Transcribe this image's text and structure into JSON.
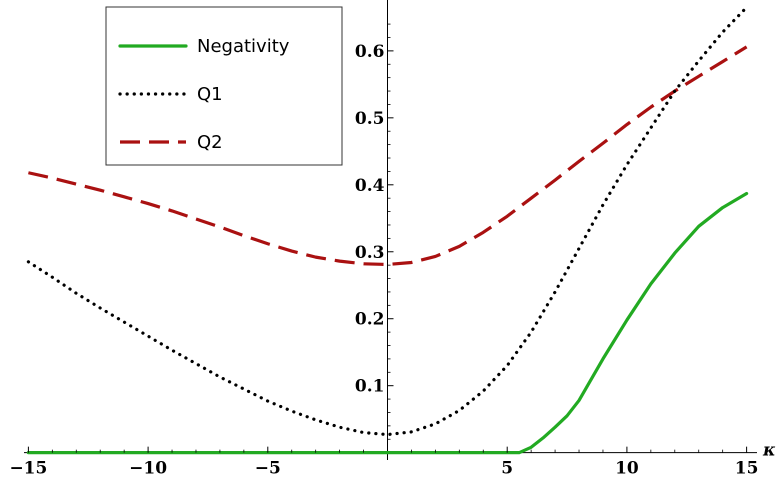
{
  "chart_data": {
    "type": "line",
    "xlabel": "κ",
    "ylabel": "",
    "xlim": [
      -15.1,
      15.1
    ],
    "ylim": [
      -0.005,
      0.67
    ],
    "x_ticks": [
      -15,
      -10,
      -5,
      5,
      10,
      15
    ],
    "y_ticks": [
      0.1,
      0.2,
      0.3,
      0.4,
      0.5,
      0.6
    ],
    "x_tick_labels": [
      "−15",
      "−10",
      "−5",
      "5",
      "10",
      "15"
    ],
    "y_tick_labels": [
      "0.1",
      "0.2",
      "0.3",
      "0.4",
      "0.5",
      "0.6"
    ],
    "grid": false,
    "legend_position": "top-left",
    "series": [
      {
        "name": "Negativity",
        "color": "#22aa22",
        "style": "solid",
        "x": [
          -15,
          -10,
          -5,
          0,
          5,
          5.5,
          6,
          6.5,
          7,
          7.5,
          8,
          9,
          10,
          11,
          12,
          13,
          14,
          15
        ],
        "y": [
          0,
          0,
          0,
          0,
          0,
          0,
          0.008,
          0.022,
          0.038,
          0.055,
          0.078,
          0.14,
          0.198,
          0.252,
          0.298,
          0.338,
          0.366,
          0.387
        ]
      },
      {
        "name": "Q1",
        "color": "#000000",
        "style": "dotted",
        "x": [
          -15,
          -14,
          -13,
          -12,
          -11,
          -10,
          -9,
          -8,
          -7,
          -6,
          -5,
          -4,
          -3,
          -2,
          -1,
          0,
          1,
          2,
          3,
          4,
          5,
          6,
          7,
          8,
          9,
          10,
          11,
          12,
          13,
          14,
          15
        ],
        "y": [
          0.285,
          0.262,
          0.238,
          0.216,
          0.195,
          0.174,
          0.153,
          0.133,
          0.113,
          0.095,
          0.077,
          0.062,
          0.049,
          0.038,
          0.03,
          0.027,
          0.031,
          0.043,
          0.063,
          0.092,
          0.13,
          0.18,
          0.24,
          0.305,
          0.37,
          0.43,
          0.485,
          0.54,
          0.585,
          0.628,
          0.665
        ]
      },
      {
        "name": "Q2",
        "color": "#aa1111",
        "style": "dashed",
        "x": [
          -15,
          -14,
          -13,
          -12,
          -11,
          -10,
          -9,
          -8,
          -7,
          -6,
          -5,
          -4,
          -3,
          -2,
          -1,
          0,
          1,
          2,
          3,
          4,
          5,
          6,
          7,
          8,
          9,
          10,
          11,
          12,
          13,
          14,
          15
        ],
        "y": [
          0.418,
          0.41,
          0.401,
          0.392,
          0.382,
          0.372,
          0.361,
          0.349,
          0.337,
          0.324,
          0.312,
          0.301,
          0.292,
          0.286,
          0.282,
          0.281,
          0.284,
          0.293,
          0.308,
          0.329,
          0.353,
          0.38,
          0.407,
          0.435,
          0.462,
          0.49,
          0.516,
          0.54,
          0.562,
          0.584,
          0.606
        ]
      }
    ]
  }
}
